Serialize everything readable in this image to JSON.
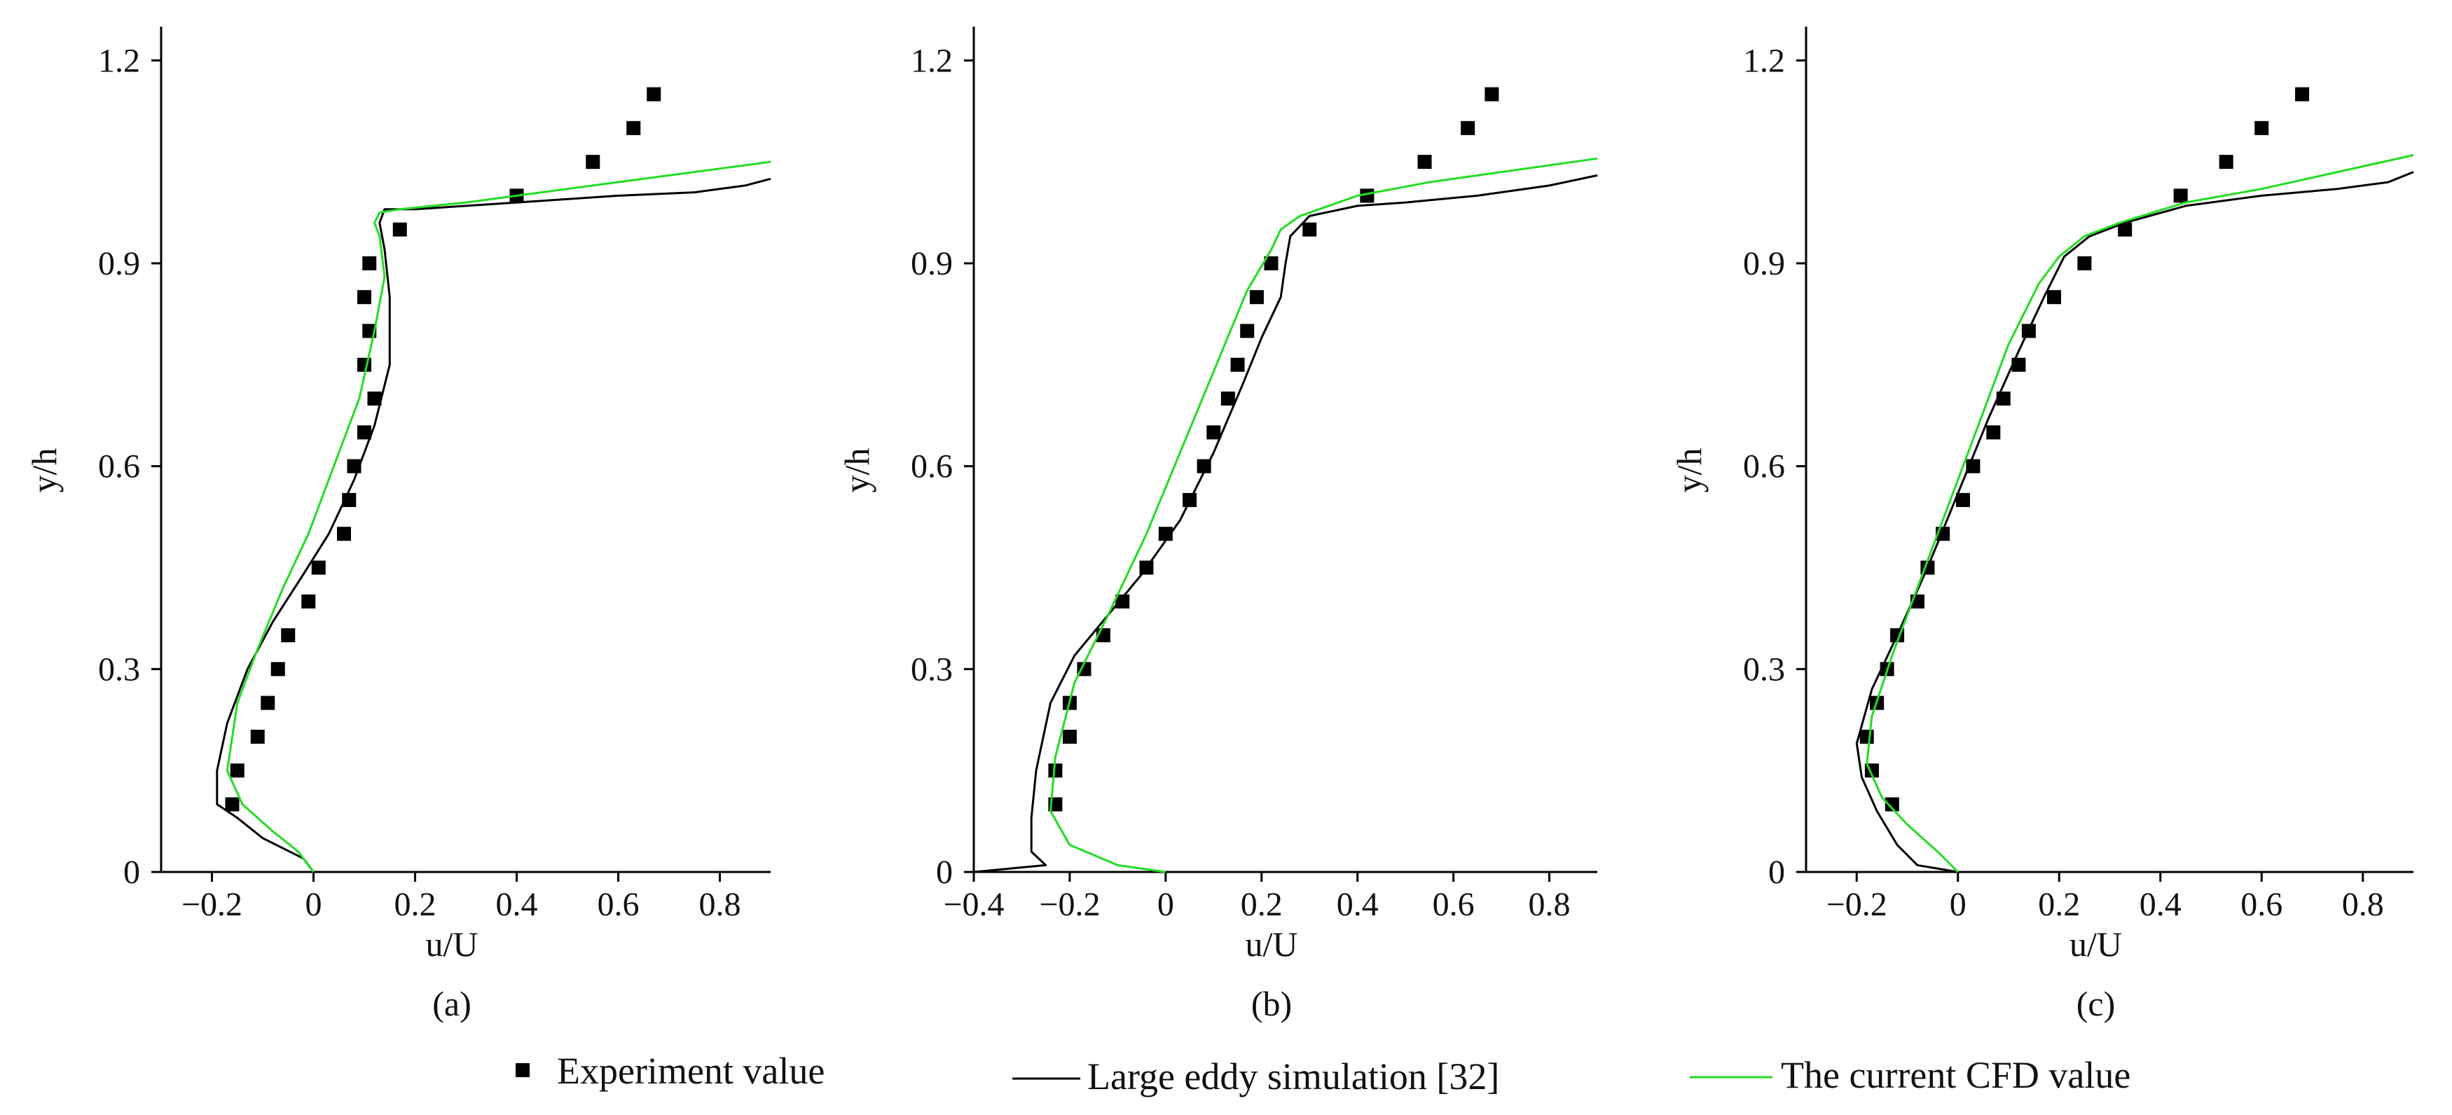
{
  "colors": {
    "experiment": "#000000",
    "les": "#000000",
    "cfd": "#22dd22",
    "axis": "#000000"
  },
  "legend": {
    "experiment": "Experiment value",
    "les": "Large eddy simulation [32]",
    "cfd": "The current CFD value"
  },
  "chart_data": [
    {
      "type": "scatter",
      "panel_label": "(a)",
      "xlabel": "u/U",
      "ylabel": "y/h",
      "xlim": [
        -0.3,
        0.9
      ],
      "ylim": [
        0,
        1.25
      ],
      "xticks": [
        -0.2,
        0,
        0.2,
        0.4,
        0.6,
        0.8
      ],
      "xtick_labels": [
        "−0.2",
        "0",
        "0.2",
        "0.4",
        "0.6",
        "0.8"
      ],
      "yticks": [
        0,
        0.3,
        0.6,
        0.9,
        1.2
      ],
      "ytick_labels": [
        "0",
        "0.3",
        "0.6",
        "0.9",
        "1.2"
      ],
      "series": [
        {
          "name": "Experiment value",
          "kind": "markers",
          "x": [
            -0.16,
            -0.15,
            -0.11,
            -0.09,
            -0.07,
            -0.05,
            -0.01,
            0.01,
            0.06,
            0.07,
            0.08,
            0.1,
            0.12,
            0.1,
            0.11,
            0.1,
            0.11,
            0.17,
            0.4,
            0.55,
            0.63,
            0.67
          ],
          "y": [
            0.1,
            0.15,
            0.2,
            0.25,
            0.3,
            0.35,
            0.4,
            0.45,
            0.5,
            0.55,
            0.6,
            0.65,
            0.7,
            0.75,
            0.8,
            0.85,
            0.9,
            0.95,
            1.0,
            1.05,
            1.1,
            1.15
          ]
        },
        {
          "name": "Large eddy simulation [32]",
          "kind": "line",
          "x": [
            0.0,
            -0.02,
            -0.1,
            -0.15,
            -0.19,
            -0.19,
            -0.17,
            -0.13,
            -0.08,
            -0.02,
            0.03,
            0.08,
            0.12,
            0.15,
            0.15,
            0.14,
            0.13,
            0.14,
            0.2,
            0.4,
            0.6,
            0.75,
            0.85,
            0.9
          ],
          "y": [
            0.0,
            0.02,
            0.05,
            0.08,
            0.1,
            0.15,
            0.22,
            0.3,
            0.37,
            0.44,
            0.5,
            0.58,
            0.66,
            0.75,
            0.85,
            0.92,
            0.96,
            0.98,
            0.98,
            0.99,
            1.0,
            1.005,
            1.015,
            1.025
          ]
        },
        {
          "name": "The current CFD value",
          "kind": "line",
          "x": [
            0.0,
            -0.03,
            -0.08,
            -0.14,
            -0.17,
            -0.15,
            -0.11,
            -0.06,
            -0.01,
            0.04,
            0.09,
            0.12,
            0.14,
            0.13,
            0.12,
            0.13,
            0.17,
            0.3,
            0.5,
            0.7,
            0.9
          ],
          "y": [
            0.0,
            0.03,
            0.06,
            0.1,
            0.15,
            0.25,
            0.33,
            0.42,
            0.5,
            0.6,
            0.7,
            0.8,
            0.88,
            0.94,
            0.96,
            0.975,
            0.98,
            0.99,
            1.01,
            1.03,
            1.05
          ]
        }
      ]
    },
    {
      "type": "scatter",
      "panel_label": "(b)",
      "xlabel": "u/U",
      "ylabel": "y/h",
      "xlim": [
        -0.4,
        0.9
      ],
      "ylim": [
        0,
        1.25
      ],
      "xticks": [
        -0.4,
        -0.2,
        0,
        0.2,
        0.4,
        0.6,
        0.8
      ],
      "xtick_labels": [
        "−0.4",
        "−0.2",
        "0",
        "0.2",
        "0.4",
        "0.6",
        "0.8"
      ],
      "yticks": [
        0,
        0.3,
        0.6,
        0.9,
        1.2
      ],
      "ytick_labels": [
        "0",
        "0.3",
        "0.6",
        "0.9",
        "1.2"
      ],
      "series": [
        {
          "name": "Experiment value",
          "kind": "markers",
          "x": [
            -0.23,
            -0.23,
            -0.2,
            -0.2,
            -0.17,
            -0.13,
            -0.09,
            -0.04,
            0.0,
            0.05,
            0.08,
            0.1,
            0.13,
            0.15,
            0.17,
            0.19,
            0.22,
            0.3,
            0.42,
            0.54,
            0.63,
            0.68
          ],
          "y": [
            0.1,
            0.15,
            0.2,
            0.25,
            0.3,
            0.35,
            0.4,
            0.45,
            0.5,
            0.55,
            0.6,
            0.65,
            0.7,
            0.75,
            0.8,
            0.85,
            0.9,
            0.95,
            1.0,
            1.05,
            1.1,
            1.15
          ]
        },
        {
          "name": "Large eddy simulation [32]",
          "kind": "line",
          "x": [
            -0.4,
            -0.25,
            -0.28,
            -0.28,
            -0.27,
            -0.24,
            -0.19,
            -0.12,
            -0.05,
            0.03,
            0.1,
            0.16,
            0.2,
            0.24,
            0.25,
            0.26,
            0.3,
            0.4,
            0.5,
            0.65,
            0.8,
            0.9
          ],
          "y": [
            0.0,
            0.01,
            0.03,
            0.08,
            0.15,
            0.25,
            0.32,
            0.38,
            0.44,
            0.52,
            0.62,
            0.72,
            0.79,
            0.85,
            0.9,
            0.94,
            0.97,
            0.985,
            0.99,
            1.0,
            1.015,
            1.03
          ]
        },
        {
          "name": "The current CFD value",
          "kind": "line",
          "x": [
            0.0,
            -0.1,
            -0.2,
            -0.24,
            -0.23,
            -0.19,
            -0.12,
            -0.04,
            0.03,
            0.1,
            0.17,
            0.22,
            0.24,
            0.28,
            0.4,
            0.55,
            0.7,
            0.9
          ],
          "y": [
            0.0,
            0.01,
            0.04,
            0.09,
            0.17,
            0.28,
            0.38,
            0.5,
            0.62,
            0.74,
            0.86,
            0.92,
            0.95,
            0.97,
            1.0,
            1.02,
            1.035,
            1.055
          ]
        }
      ]
    },
    {
      "type": "scatter",
      "panel_label": "(c)",
      "xlabel": "u/U",
      "ylabel": "y/h",
      "xlim": [
        -0.3,
        0.9
      ],
      "ylim": [
        0,
        1.25
      ],
      "xticks": [
        -0.2,
        0,
        0.2,
        0.4,
        0.6,
        0.8
      ],
      "xtick_labels": [
        "−0.2",
        "0",
        "0.2",
        "0.4",
        "0.6",
        "0.8"
      ],
      "yticks": [
        0,
        0.3,
        0.6,
        0.9,
        1.2
      ],
      "ytick_labels": [
        "0",
        "0.3",
        "0.6",
        "0.9",
        "1.2"
      ],
      "series": [
        {
          "name": "Experiment value",
          "kind": "markers",
          "x": [
            -0.13,
            -0.17,
            -0.18,
            -0.16,
            -0.14,
            -0.12,
            -0.08,
            -0.06,
            -0.03,
            0.01,
            0.03,
            0.07,
            0.09,
            0.12,
            0.14,
            0.19,
            0.25,
            0.33,
            0.44,
            0.53,
            0.6,
            0.68
          ],
          "y": [
            0.1,
            0.15,
            0.2,
            0.25,
            0.3,
            0.35,
            0.4,
            0.45,
            0.5,
            0.55,
            0.6,
            0.65,
            0.7,
            0.75,
            0.8,
            0.85,
            0.9,
            0.95,
            1.0,
            1.05,
            1.1,
            1.15
          ]
        },
        {
          "name": "Large eddy simulation [32]",
          "kind": "line",
          "x": [
            0.0,
            -0.08,
            -0.12,
            -0.16,
            -0.19,
            -0.2,
            -0.17,
            -0.12,
            -0.06,
            0.0,
            0.06,
            0.12,
            0.17,
            0.21,
            0.26,
            0.33,
            0.45,
            0.6,
            0.75,
            0.85,
            0.9
          ],
          "y": [
            0.0,
            0.01,
            0.04,
            0.09,
            0.14,
            0.19,
            0.27,
            0.35,
            0.45,
            0.56,
            0.67,
            0.77,
            0.85,
            0.91,
            0.94,
            0.96,
            0.985,
            1.0,
            1.01,
            1.02,
            1.035
          ]
        },
        {
          "name": "The current CFD value",
          "kind": "line",
          "x": [
            0.0,
            -0.04,
            -0.1,
            -0.15,
            -0.18,
            -0.17,
            -0.13,
            -0.08,
            -0.02,
            0.04,
            0.1,
            0.16,
            0.2,
            0.25,
            0.32,
            0.45,
            0.6,
            0.75,
            0.9
          ],
          "y": [
            0.0,
            0.03,
            0.07,
            0.11,
            0.16,
            0.23,
            0.32,
            0.42,
            0.54,
            0.66,
            0.78,
            0.87,
            0.91,
            0.94,
            0.96,
            0.99,
            1.01,
            1.035,
            1.06
          ]
        }
      ]
    }
  ]
}
